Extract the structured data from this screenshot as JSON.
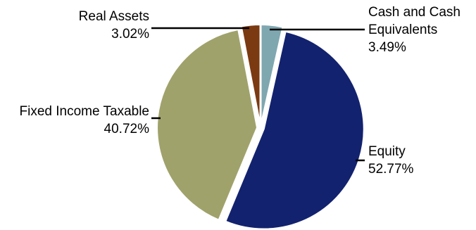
{
  "chart_data": {
    "type": "pie",
    "slices": [
      {
        "label_lines": [
          "Cash and Cash",
          "Equivalents"
        ],
        "pct_text": "3.49%",
        "value": 3.49,
        "color": "#7FA7B0"
      },
      {
        "label_lines": [
          "Equity"
        ],
        "pct_text": "52.77%",
        "value": 52.77,
        "color": "#12226E"
      },
      {
        "label_lines": [
          "Fixed Income Taxable"
        ],
        "pct_text": "40.72%",
        "value": 40.72,
        "color": "#A0A26B"
      },
      {
        "label_lines": [
          "Real Assets"
        ],
        "pct_text": "3.02%",
        "value": 3.02,
        "color": "#7B3A12"
      }
    ],
    "start": "12 o'clock",
    "direction": "clockwise",
    "exploded": true
  }
}
